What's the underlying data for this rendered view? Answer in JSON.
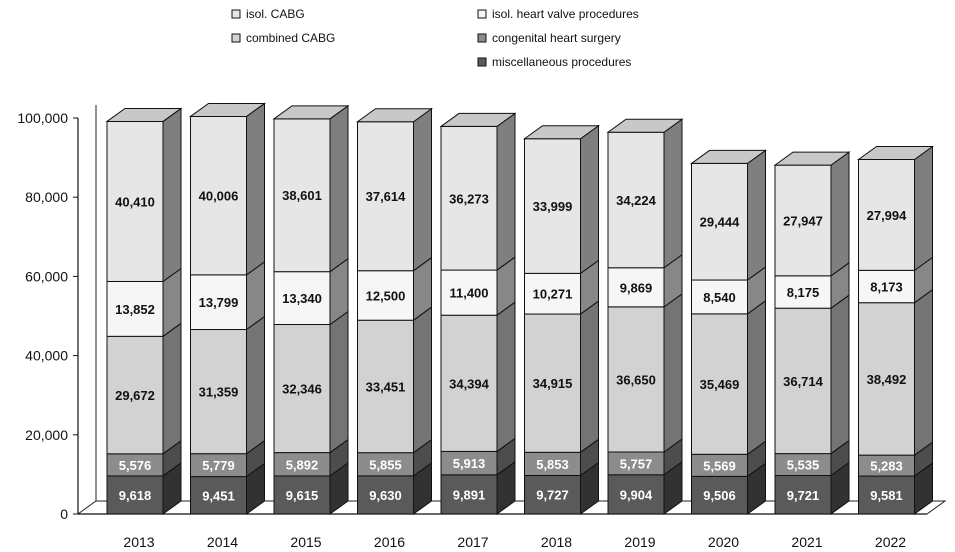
{
  "chart_data": {
    "type": "bar",
    "stacked": true,
    "three_d": true,
    "categories": [
      "2013",
      "2014",
      "2015",
      "2016",
      "2017",
      "2018",
      "2019",
      "2020",
      "2021",
      "2022"
    ],
    "series": [
      {
        "name": "miscellaneous procedures",
        "color": "#5a5a5a",
        "label_color": "#ffffff",
        "values": [
          9618,
          9451,
          9615,
          9630,
          9891,
          9727,
          9904,
          9506,
          9721,
          9581
        ],
        "labels": [
          "9,618",
          "9,451",
          "9,615",
          "9,630",
          "9,891",
          "9,727",
          "9,904",
          "9,506",
          "9,721",
          "9,581"
        ]
      },
      {
        "name": "congenital heart surgery",
        "color": "#8c8c8c",
        "label_color": "#ffffff",
        "values": [
          5576,
          5779,
          5892,
          5855,
          5913,
          5853,
          5757,
          5569,
          5535,
          5283
        ],
        "labels": [
          "5,576",
          "5,779",
          "5,892",
          "5,855",
          "5,913",
          "5,853",
          "5,757",
          "5,569",
          "5,535",
          "5,283"
        ]
      },
      {
        "name": "combined CABG",
        "color": "#d2d2d2",
        "label_color": "#111111",
        "values": [
          29672,
          31359,
          32346,
          33451,
          34394,
          34915,
          36650,
          35469,
          36714,
          38492
        ],
        "labels": [
          "29,672",
          "31,359",
          "32,346",
          "33,451",
          "34,394",
          "34,915",
          "36,650",
          "35,469",
          "36,714",
          "38,492"
        ]
      },
      {
        "name": "isol. heart valve procedures",
        "color": "#f6f6f6",
        "label_color": "#111111",
        "values": [
          13852,
          13799,
          13340,
          12500,
          11400,
          10271,
          9869,
          8540,
          8175,
          8173
        ],
        "labels": [
          "13,852",
          "13,799",
          "13,340",
          "12,500",
          "11,400",
          "10,271",
          "9,869",
          "8,540",
          "8,175",
          "8,173"
        ]
      },
      {
        "name": "isol. CABG",
        "color": "#e6e6e6",
        "label_color": "#111111",
        "values": [
          40410,
          40006,
          38601,
          37614,
          36273,
          33999,
          34224,
          29444,
          27947,
          27994
        ],
        "labels": [
          "40,410",
          "40,006",
          "38,601",
          "37,614",
          "36,273",
          "33,999",
          "34,224",
          "29,444",
          "27,947",
          "27,994"
        ]
      }
    ],
    "legend": {
      "placement": "top",
      "entries": [
        "isol. CABG",
        "isol. heart valve procedures",
        "combined CABG",
        "congenital heart surgery",
        "miscellaneous procedures"
      ]
    },
    "yaxis": {
      "ticks": [
        0,
        20000,
        40000,
        60000,
        80000,
        100000
      ],
      "tick_labels": [
        "0",
        "20,000",
        "40,000",
        "60,000",
        "80,000",
        "100,000"
      ]
    },
    "ylim": [
      0,
      100000
    ],
    "grid": false,
    "title": "",
    "xlabel": "",
    "ylabel": ""
  }
}
